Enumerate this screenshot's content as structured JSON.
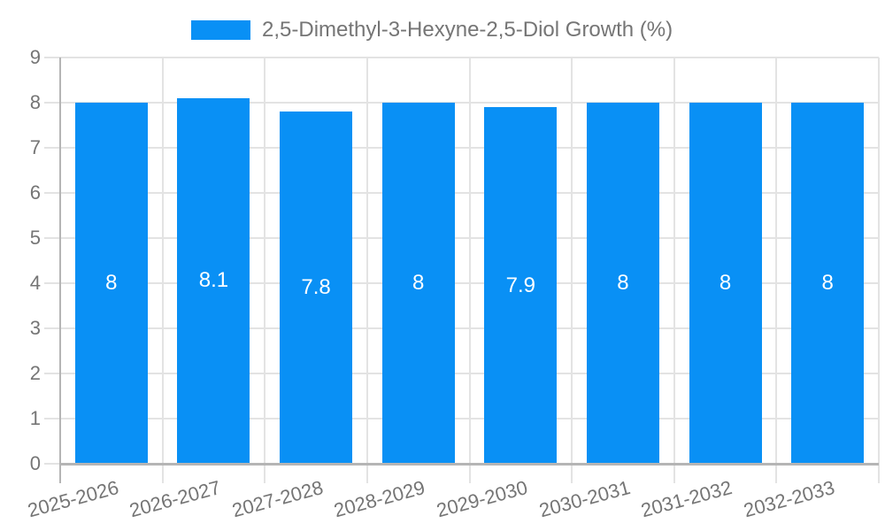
{
  "chart_data": {
    "type": "bar",
    "title": "",
    "legend": {
      "position": "top",
      "label": "2,5-Dimethyl-3-Hexyne-2,5-Diol Growth (%)"
    },
    "categories": [
      "2025-2026",
      "2026-2027",
      "2027-2028",
      "2028-2029",
      "2029-2030",
      "2030-2031",
      "2031-2032",
      "2032-2033"
    ],
    "values": [
      8,
      8.1,
      7.8,
      8,
      7.9,
      8,
      8,
      8
    ],
    "value_labels": [
      "8",
      "8.1",
      "7.8",
      "8",
      "7.9",
      "8",
      "8",
      "8"
    ],
    "xlabel": "",
    "ylabel": "",
    "ylim": [
      0,
      9
    ],
    "yticks": [
      "0",
      "1",
      "2",
      "3",
      "4",
      "5",
      "6",
      "7",
      "8",
      "9"
    ],
    "grid": true,
    "colors": {
      "bar": "#0990f5",
      "gridline": "#e3e3e3",
      "axis_line": "#b5b5b5",
      "axis_text": "#757575",
      "bar_label": "#ffffff",
      "background": "#ffffff"
    }
  }
}
